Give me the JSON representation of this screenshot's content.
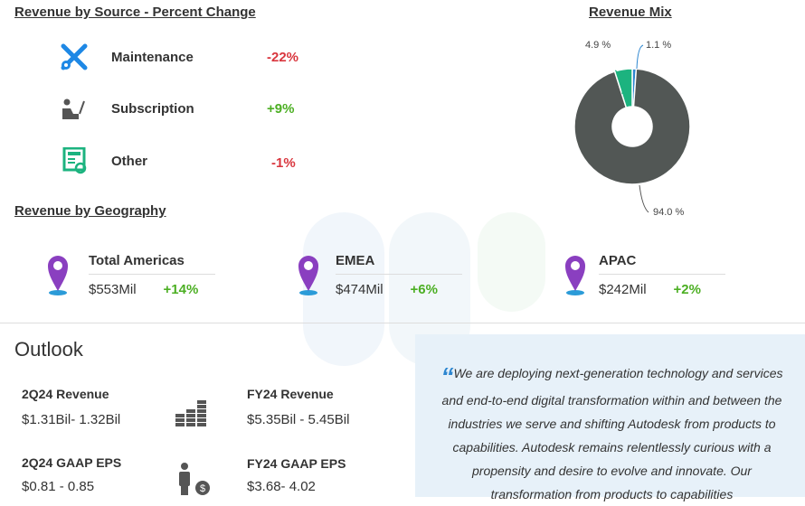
{
  "source": {
    "title": "Revenue by Source - Percent Change",
    "items": [
      {
        "label": "Maintenance",
        "change": "-22%",
        "icon": "tools-icon"
      },
      {
        "label": "Subscription",
        "change": "+9%",
        "icon": "person-laptop-icon"
      },
      {
        "label": "Other",
        "change": "-1%",
        "icon": "document-refresh-icon"
      }
    ]
  },
  "mix": {
    "title": "Revenue Mix"
  },
  "chart_data": {
    "type": "pie",
    "title": "Revenue Mix",
    "donut": true,
    "categories": [
      "Maintenance",
      "Subscription",
      "Other"
    ],
    "values": [
      1.1,
      94.0,
      4.9
    ],
    "labels": [
      "1.1 %",
      "94.0 %",
      "4.9 %"
    ],
    "colors": [
      "#2d86d0",
      "#525755",
      "#1cb37f"
    ]
  },
  "geo": {
    "title": "Revenue by Geography",
    "items": [
      {
        "name": "Total Americas",
        "value": "$553Mil",
        "change": "+14%"
      },
      {
        "name": "EMEA",
        "value": "$474Mil",
        "change": "+6%"
      },
      {
        "name": "APAC",
        "value": "$242Mil",
        "change": "+2%"
      }
    ]
  },
  "outlook": {
    "title": "Outlook",
    "q_rev_label": "2Q24 Revenue",
    "q_rev": "$1.31Bil- 1.32Bil",
    "fy_rev_label": "FY24 Revenue",
    "fy_rev": "$5.35Bil - 5.45Bil",
    "q_eps_label": "2Q24 GAAP EPS",
    "q_eps": "$0.81 - 0.85",
    "fy_eps_label": "FY24 GAAP EPS",
    "fy_eps": "$3.68- 4.02"
  },
  "quote": {
    "mark": "“",
    "text": "We are deploying next-generation technology and services and end-to-end digital transformation within and between the industries we serve and shifting Autodesk from products to capabilities. Autodesk remains relentlessly curious with a propensity and desire to evolve and innovate. Our transformation from products to capabilities"
  }
}
